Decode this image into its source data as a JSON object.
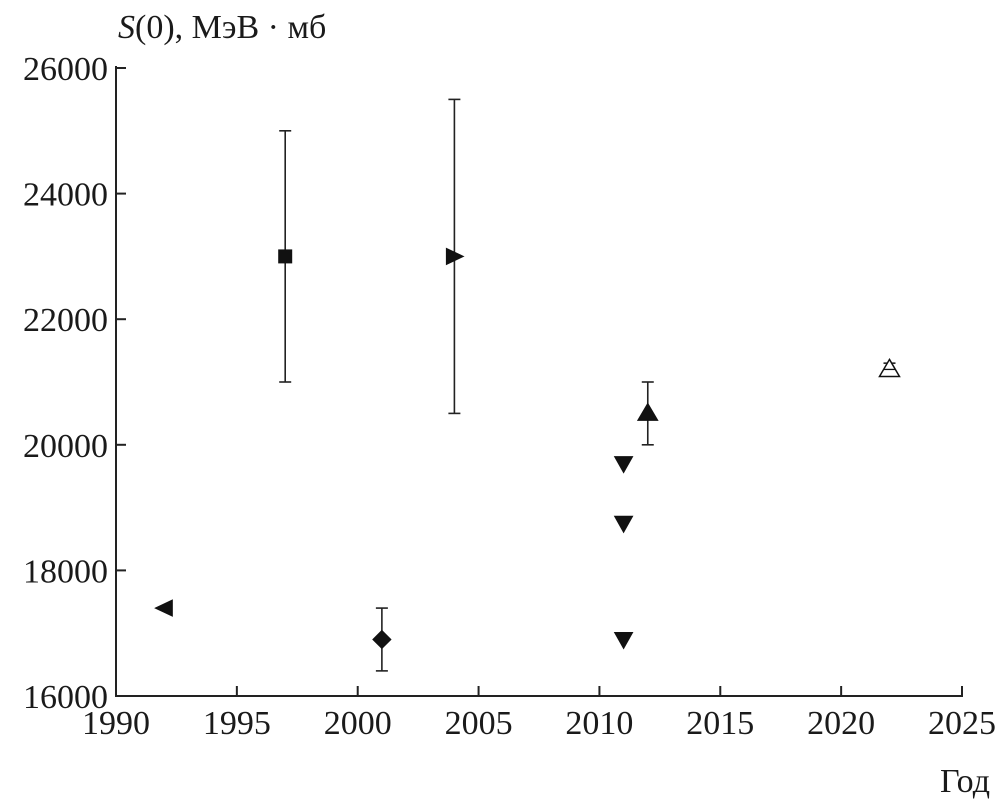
{
  "chart_data": {
    "type": "scatter",
    "title": "",
    "ylabel_italic": "S",
    "ylabel_rest": "(0), МэВ · мб",
    "xlabel": "Год",
    "xlim": [
      1990,
      2025
    ],
    "ylim": [
      16000,
      26000
    ],
    "x_ticks": [
      "1990",
      "1995",
      "2000",
      "2005",
      "2010",
      "2015",
      "2020",
      "2025"
    ],
    "y_ticks": [
      "16000",
      "18000",
      "20000",
      "22000",
      "24000",
      "26000"
    ],
    "grid": false,
    "points": [
      {
        "x": 1992,
        "y": 17400,
        "marker": "triangle-left",
        "filled": true
      },
      {
        "x": 1997,
        "y": 23000,
        "err": 2000,
        "marker": "square",
        "filled": true
      },
      {
        "x": 2001,
        "y": 16900,
        "err": 500,
        "marker": "diamond",
        "filled": true
      },
      {
        "x": 2004,
        "y": 23000,
        "err": 2500,
        "marker": "triangle-right",
        "filled": true
      },
      {
        "x": 2011,
        "y": 19700,
        "marker": "triangle-down",
        "filled": true
      },
      {
        "x": 2011,
        "y": 18750,
        "marker": "triangle-down",
        "filled": true
      },
      {
        "x": 2011,
        "y": 16900,
        "marker": "triangle-down",
        "filled": true
      },
      {
        "x": 2012,
        "y": 20500,
        "err": 500,
        "marker": "triangle-up",
        "filled": true
      },
      {
        "x": 2022,
        "y": 21200,
        "err": 100,
        "marker": "triangle-up",
        "filled": false
      }
    ]
  }
}
